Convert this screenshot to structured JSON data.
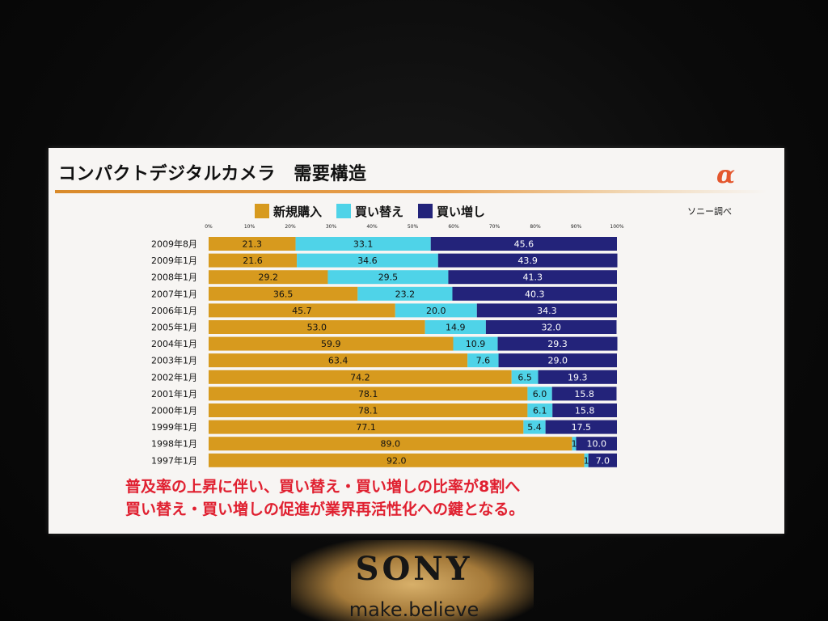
{
  "slide": {
    "title": "コンパクトデジタルカメラ　需要構造",
    "logo_text": "α",
    "source": "ソニー調べ",
    "message_line1": "普及率の上昇に伴い、買い替え・買い増しの比率が8割へ",
    "message_line2": "買い替え・買い増しの促進が業界再活性化への鍵となる。"
  },
  "venue": {
    "brand": "SONY",
    "tagline": "make.believe"
  },
  "colors": {
    "new": "#d79a1e",
    "replace": "#4fd3e8",
    "additional": "#23237a",
    "message": "#e02030"
  },
  "chart_data": {
    "type": "bar",
    "orientation": "horizontal",
    "stacked": true,
    "percent_axis_ticks": [
      "0%",
      "10%",
      "20%",
      "30%",
      "40%",
      "50%",
      "60%",
      "70%",
      "80%",
      "90%",
      "100%"
    ],
    "xlim": [
      0,
      100
    ],
    "legend_position": "top",
    "categories": [
      "2009年8月",
      "2009年1月",
      "2008年1月",
      "2007年1月",
      "2006年1月",
      "2005年1月",
      "2004年1月",
      "2003年1月",
      "2002年1月",
      "2001年1月",
      "2000年1月",
      "1999年1月",
      "1998年1月",
      "1997年1月"
    ],
    "series": [
      {
        "name": "新規購入",
        "values": [
          21.3,
          21.6,
          29.2,
          36.5,
          45.7,
          53.0,
          59.9,
          63.4,
          74.2,
          78.1,
          78.1,
          77.1,
          89.0,
          92.0
        ]
      },
      {
        "name": "買い替え",
        "values": [
          33.1,
          34.6,
          29.5,
          23.2,
          20.0,
          14.9,
          10.9,
          7.6,
          6.5,
          6.0,
          6.1,
          5.4,
          1.0,
          1.0
        ]
      },
      {
        "name": "買い増し",
        "values": [
          45.6,
          43.9,
          41.3,
          40.3,
          34.3,
          32.0,
          29.3,
          29.0,
          19.3,
          15.8,
          15.8,
          17.5,
          10.0,
          7.0
        ]
      }
    ],
    "value_labels": [
      [
        "21.3",
        "33.1",
        "45.6"
      ],
      [
        "21.6",
        "34.6",
        "43.9"
      ],
      [
        "29.2",
        "29.5",
        "41.3"
      ],
      [
        "36.5",
        "23.2",
        "40.3"
      ],
      [
        "45.7",
        "20.0",
        "34.3"
      ],
      [
        "53.0",
        "14.9",
        "32.0"
      ],
      [
        "59.9",
        "10.9",
        "29.3"
      ],
      [
        "63.4",
        "7.6",
        "29.0"
      ],
      [
        "74.2",
        "6.5",
        "19.3"
      ],
      [
        "78.1",
        "6.0",
        "15.8"
      ],
      [
        "78.1",
        "6.1",
        "15.8"
      ],
      [
        "77.1",
        "5.4",
        "17.5"
      ],
      [
        "89.0",
        "1",
        "10.0"
      ],
      [
        "92.0",
        "1",
        "7.0"
      ]
    ]
  }
}
